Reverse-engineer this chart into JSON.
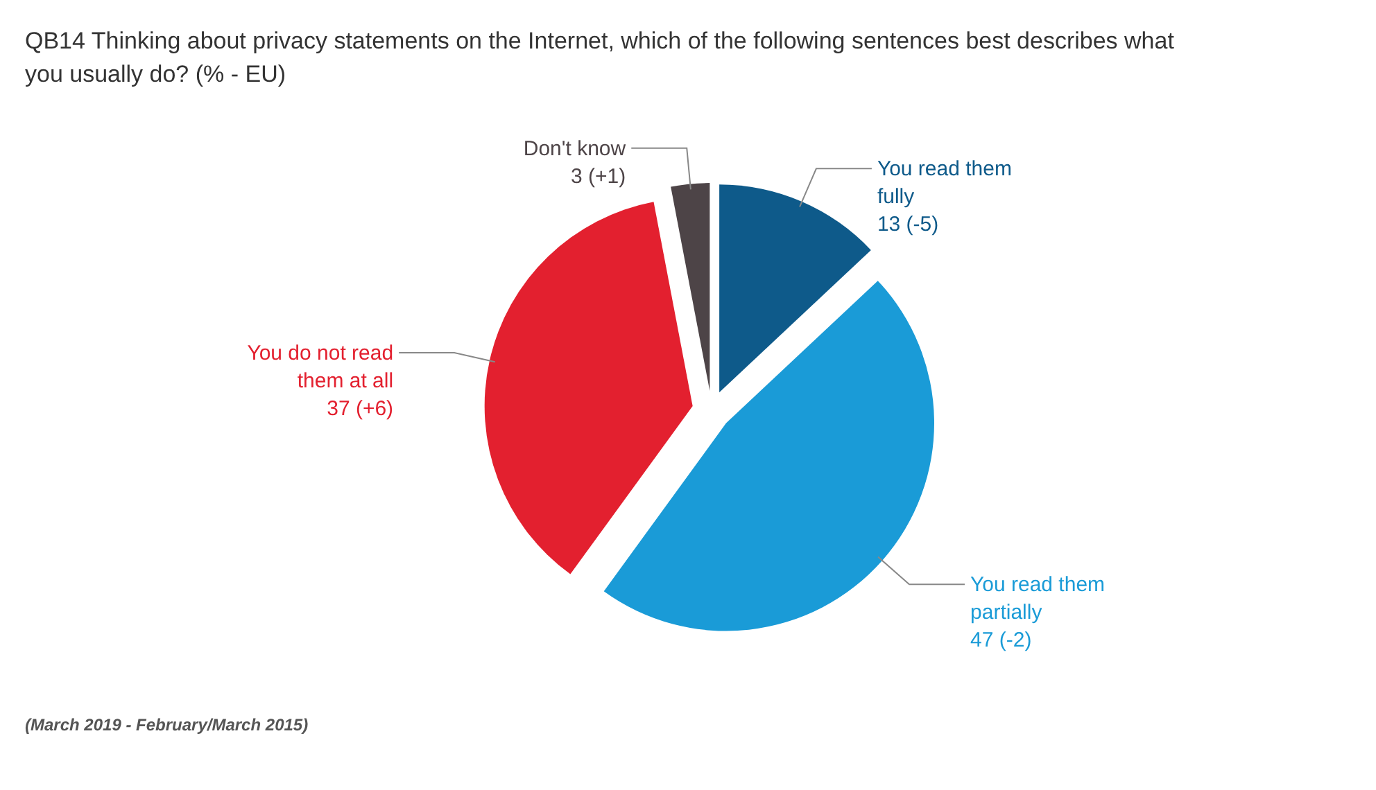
{
  "chart_data": {
    "type": "pie",
    "title": "QB14 Thinking about privacy statements on the Internet, which of the following sentences best describes what you usually do? (% - EU)",
    "categories": [
      "You read them fully",
      "You read them partially",
      "You do not read them at all",
      "Don't know"
    ],
    "values": [
      13,
      47,
      37,
      3
    ],
    "colors": [
      "#0e5a8a",
      "#1a9bd7",
      "#e3202f",
      "#4d4447"
    ],
    "value_labels": [
      "13 (-5)",
      "47 (-2)",
      "37 (+6)",
      "3 (+1)"
    ],
    "annotations": [
      "(March 2019 - February/March 2015)"
    ]
  }
}
